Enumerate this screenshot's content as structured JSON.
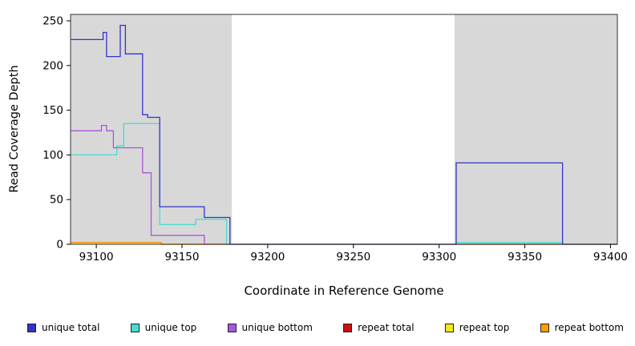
{
  "chart_data": {
    "type": "line",
    "title": "",
    "xlabel": "Coordinate in Reference Genome",
    "ylabel": "Read Coverage Depth",
    "xlim": [
      93085,
      93404
    ],
    "ylim": [
      0,
      250
    ],
    "xticks": [
      93100,
      93150,
      93200,
      93250,
      93300,
      93350,
      93400
    ],
    "yticks": [
      0,
      50,
      100,
      150,
      200,
      250
    ],
    "grid": false,
    "legend_position": "bottom",
    "background_shading": {
      "color": "#d8d8d8",
      "regions": [
        [
          93085,
          93179
        ],
        [
          93309,
          93404
        ]
      ]
    },
    "series": [
      {
        "name": "repeat total",
        "color": "#cc1111",
        "points": [
          [
            93085,
            2
          ],
          [
            93138,
            2
          ],
          [
            93138,
            0
          ],
          [
            93404,
            0
          ]
        ]
      },
      {
        "name": "repeat top",
        "color": "#f0e818",
        "points": [
          [
            93085,
            0
          ],
          [
            93404,
            0
          ]
        ]
      },
      {
        "name": "repeat bottom",
        "color": "#ff9d00",
        "points": [
          [
            93085,
            2
          ],
          [
            93138,
            2
          ],
          [
            93138,
            0
          ],
          [
            93404,
            0
          ]
        ]
      },
      {
        "name": "unique top",
        "color": "#45dcd2",
        "points": [
          [
            93085,
            100
          ],
          [
            93112,
            100
          ],
          [
            93112,
            110
          ],
          [
            93116,
            110
          ],
          [
            93116,
            135
          ],
          [
            93137,
            135
          ],
          [
            93137,
            22
          ],
          [
            93158,
            22
          ],
          [
            93158,
            28
          ],
          [
            93176,
            28
          ],
          [
            93176,
            0
          ],
          [
            93310,
            0
          ],
          [
            93310,
            2
          ],
          [
            93372,
            2
          ],
          [
            93372,
            0
          ],
          [
            93404,
            0
          ]
        ]
      },
      {
        "name": "unique bottom",
        "color": "#aa55dd",
        "points": [
          [
            93085,
            127
          ],
          [
            93103,
            127
          ],
          [
            93103,
            133
          ],
          [
            93106,
            133
          ],
          [
            93106,
            127
          ],
          [
            93110,
            127
          ],
          [
            93110,
            108
          ],
          [
            93127,
            108
          ],
          [
            93127,
            80
          ],
          [
            93132,
            80
          ],
          [
            93132,
            10
          ],
          [
            93163,
            10
          ],
          [
            93163,
            0
          ],
          [
            93404,
            0
          ]
        ]
      },
      {
        "name": "unique total",
        "color": "#3333cc",
        "points": [
          [
            93085,
            229
          ],
          [
            93104,
            229
          ],
          [
            93104,
            237
          ],
          [
            93106,
            237
          ],
          [
            93106,
            210
          ],
          [
            93114,
            210
          ],
          [
            93114,
            245
          ],
          [
            93117,
            245
          ],
          [
            93117,
            213
          ],
          [
            93127,
            213
          ],
          [
            93127,
            145
          ],
          [
            93130,
            145
          ],
          [
            93130,
            142
          ],
          [
            93137,
            142
          ],
          [
            93137,
            42
          ],
          [
            93163,
            42
          ],
          [
            93163,
            30
          ],
          [
            93178,
            30
          ],
          [
            93178,
            0
          ],
          [
            93310,
            0
          ],
          [
            93310,
            91
          ],
          [
            93372,
            91
          ],
          [
            93372,
            0
          ],
          [
            93404,
            0
          ]
        ]
      }
    ],
    "legend": {
      "items": [
        {
          "label": "unique total",
          "color": "#3333cc"
        },
        {
          "label": "unique top",
          "color": "#45dcd2"
        },
        {
          "label": "unique bottom",
          "color": "#aa55dd"
        },
        {
          "label": "repeat total",
          "color": "#cc1111"
        },
        {
          "label": "repeat top",
          "color": "#f0e818"
        },
        {
          "label": "repeat bottom",
          "color": "#ff9d00"
        }
      ]
    }
  }
}
